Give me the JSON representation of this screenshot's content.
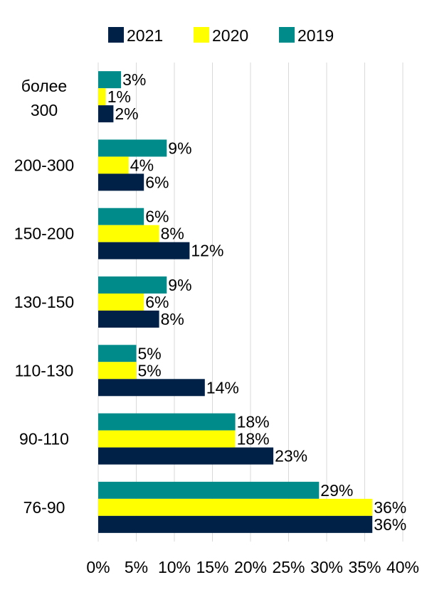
{
  "chart_data": {
    "type": "bar",
    "orientation": "horizontal",
    "categories": [
      "более 300",
      "200-300",
      "150-200",
      "130-150",
      "110-130",
      "90-110",
      "76-90"
    ],
    "series": [
      {
        "name": "2021",
        "color": "#002147",
        "values": [
          2,
          6,
          12,
          8,
          14,
          23,
          36
        ],
        "labels": [
          "2%",
          "6%",
          "12%",
          "8%",
          "14%",
          "23%",
          "36%"
        ]
      },
      {
        "name": "2020",
        "color": "#FFFF00",
        "values": [
          1,
          4,
          8,
          6,
          5,
          18,
          36
        ],
        "labels": [
          "1%",
          "4%",
          "8%",
          "6%",
          "5%",
          "18%",
          "36%"
        ]
      },
      {
        "name": "2019",
        "color": "#008B8B",
        "values": [
          3,
          9,
          6,
          9,
          5,
          18,
          29
        ],
        "labels": [
          "3%",
          "9%",
          "6%",
          "9%",
          "5%",
          "18%",
          "29%"
        ]
      }
    ],
    "xlim": [
      0,
      40
    ],
    "xticks": [
      "0%",
      "5%",
      "10%",
      "15%",
      "20%",
      "25%",
      "30%",
      "35%",
      "40%"
    ],
    "grid": true,
    "legend_position": "top"
  }
}
